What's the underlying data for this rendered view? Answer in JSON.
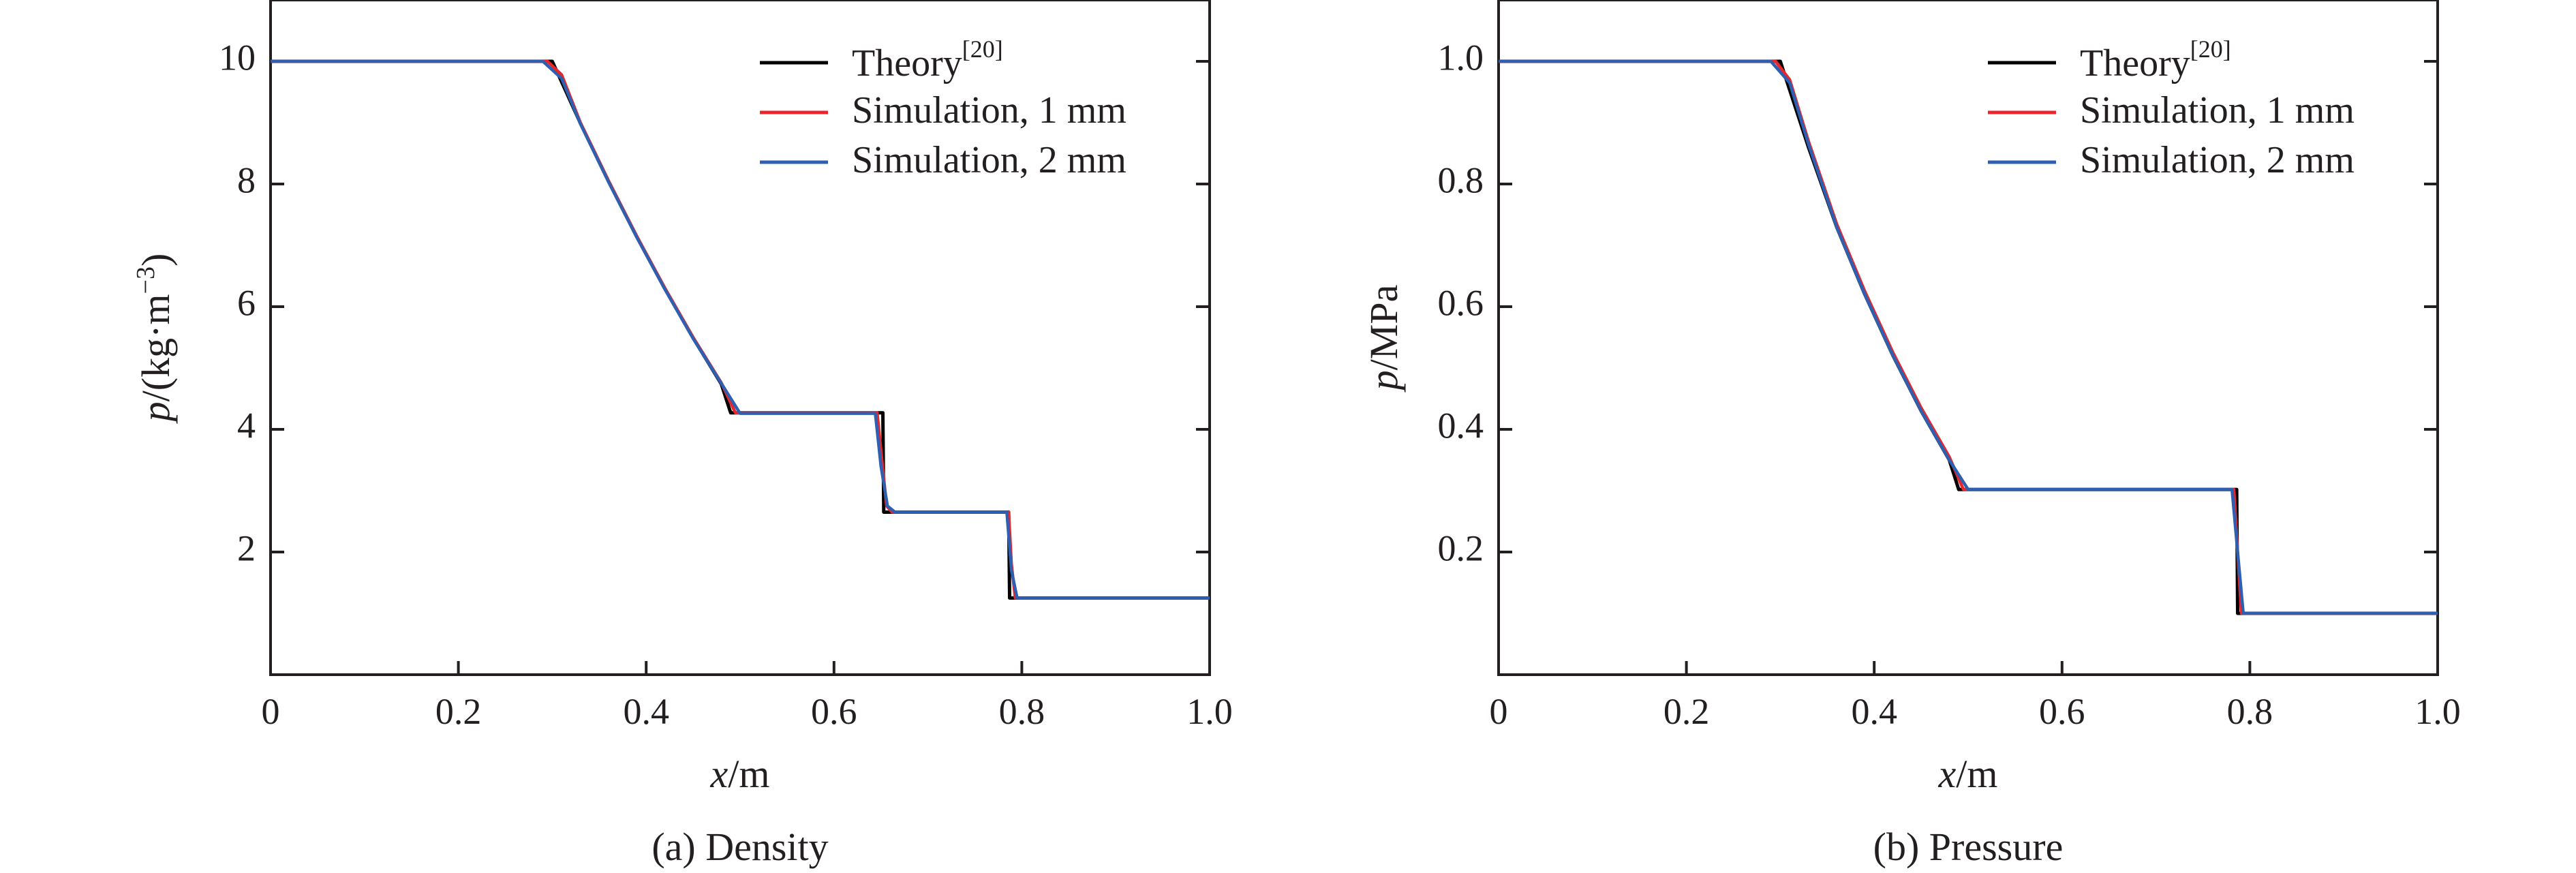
{
  "chart_data": [
    {
      "type": "line",
      "caption": "(a) Density",
      "xlabel": {
        "var": "x",
        "unit": "/m"
      },
      "ylabel": {
        "var": "p",
        "unit": "/(kg·m",
        "sup": "−3",
        "close": ")"
      },
      "xlim": [
        0,
        1.0
      ],
      "ylim": [
        0,
        11
      ],
      "xticks": [
        0,
        0.2,
        0.4,
        0.6,
        0.8,
        1.0
      ],
      "xtick_labels": [
        "0",
        "0.2",
        "0.4",
        "0.6",
        "0.8",
        "1.0"
      ],
      "yticks": [
        2,
        4,
        6,
        8,
        10
      ],
      "ytick_labels": [
        "2",
        "4",
        "6",
        "8",
        "10"
      ],
      "grid": false,
      "legend_position": "top-right",
      "series": [
        {
          "name": "Theory",
          "name_sup": "[20]",
          "color": "#000000",
          "x": [
            0,
            0.3,
            0.33,
            0.36,
            0.39,
            0.42,
            0.45,
            0.48,
            0.49,
            0.652,
            0.653,
            0.786,
            0.787,
            1.0
          ],
          "y": [
            10,
            10,
            8.99,
            8.04,
            7.14,
            6.29,
            5.49,
            4.74,
            4.27,
            4.27,
            2.65,
            2.65,
            1.25,
            1.25
          ]
        },
        {
          "name": "Simulation, 1 mm",
          "color": "#e8262b",
          "x": [
            0,
            0.295,
            0.31,
            0.33,
            0.36,
            0.39,
            0.42,
            0.45,
            0.48,
            0.495,
            0.646,
            0.651,
            0.656,
            0.662,
            0.786,
            0.789,
            0.793,
            1.0
          ],
          "y": [
            10,
            10,
            9.78,
            9.0,
            8.05,
            7.15,
            6.3,
            5.5,
            4.76,
            4.27,
            4.27,
            3.5,
            2.75,
            2.65,
            2.65,
            1.8,
            1.25,
            1.25
          ]
        },
        {
          "name": "Simulation, 2 mm",
          "color": "#2f5fb0",
          "x": [
            0,
            0.29,
            0.31,
            0.33,
            0.36,
            0.39,
            0.42,
            0.45,
            0.48,
            0.5,
            0.644,
            0.65,
            0.657,
            0.665,
            0.784,
            0.789,
            0.795,
            1.0
          ],
          "y": [
            10,
            10,
            9.72,
            8.98,
            8.03,
            7.13,
            6.28,
            5.48,
            4.75,
            4.26,
            4.26,
            3.4,
            2.75,
            2.65,
            2.65,
            1.7,
            1.25,
            1.25
          ]
        }
      ]
    },
    {
      "type": "line",
      "caption": "(b) Pressure",
      "xlabel": {
        "var": "x",
        "unit": "/m"
      },
      "ylabel": {
        "var": "p",
        "unit": "/MPa",
        "sup": "",
        "close": ""
      },
      "xlim": [
        0,
        1.0
      ],
      "ylim": [
        0,
        1.1
      ],
      "xticks": [
        0,
        0.2,
        0.4,
        0.6,
        0.8,
        1.0
      ],
      "xtick_labels": [
        "0",
        "0.2",
        "0.4",
        "0.6",
        "0.8",
        "1.0"
      ],
      "yticks": [
        0.2,
        0.4,
        0.6,
        0.8,
        1.0
      ],
      "ytick_labels": [
        "0.2",
        "0.4",
        "0.6",
        "0.8",
        "1.0"
      ],
      "grid": false,
      "legend_position": "top-right",
      "series": [
        {
          "name": "Theory",
          "name_sup": "[20]",
          "color": "#000000",
          "x": [
            0,
            0.3,
            0.33,
            0.36,
            0.39,
            0.42,
            0.45,
            0.48,
            0.49,
            0.786,
            0.787,
            1.0
          ],
          "y": [
            1.0,
            1.0,
            0.86,
            0.73,
            0.62,
            0.52,
            0.43,
            0.35,
            0.302,
            0.302,
            0.1,
            0.1
          ]
        },
        {
          "name": "Simulation, 1 mm",
          "color": "#e8262b",
          "x": [
            0,
            0.295,
            0.31,
            0.33,
            0.36,
            0.39,
            0.42,
            0.45,
            0.48,
            0.495,
            0.783,
            0.787,
            0.791,
            1.0
          ],
          "y": [
            1.0,
            1.0,
            0.97,
            0.87,
            0.735,
            0.625,
            0.525,
            0.435,
            0.355,
            0.302,
            0.302,
            0.2,
            0.1,
            0.1
          ]
        },
        {
          "name": "Simulation, 2 mm",
          "color": "#2f5fb0",
          "x": [
            0,
            0.29,
            0.31,
            0.33,
            0.36,
            0.39,
            0.42,
            0.45,
            0.48,
            0.5,
            0.781,
            0.787,
            0.793,
            1.0
          ],
          "y": [
            1.0,
            1.0,
            0.965,
            0.865,
            0.73,
            0.62,
            0.52,
            0.43,
            0.35,
            0.302,
            0.302,
            0.2,
            0.1,
            0.1
          ]
        }
      ]
    }
  ]
}
